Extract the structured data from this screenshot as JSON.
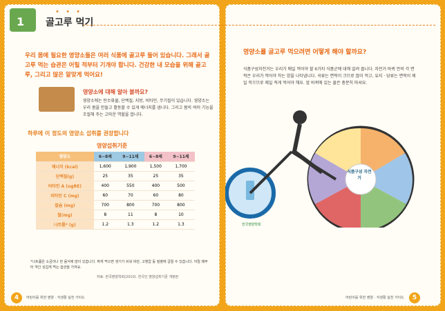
{
  "chapter": {
    "number": "1",
    "title": "골고루 먹기"
  },
  "intro_text": "우리 몸에 필요한 영양소들은 여러 식품에 골고루 들어 있습니다. 그래서 골고루 먹는 습관은 어릴 적부터 기개야 합니다. 건강한 내 모습을 위해 골고루, 그리고 많은 알맞게 먹어요!",
  "nutrient_box": {
    "title": "영양소에 대해 알아 볼까요?",
    "text": "영양소에는 탄수화물, 단백질, 지방, 비타민, 무기질이 있습니다. 영양소는 우리 몸을 만들고 활동할 수 있게 에너지를 냅니다. 그리고 몸의 여러 기능을 조절해 주는 고마운 역할을 합니다."
  },
  "intake_section": {
    "title": "하루에 이 정도의 영양소 섭취를 권장합니다",
    "table_caption": "영양섭취기준",
    "row_header": "영양소",
    "columns": [
      "6~8세",
      "9~11세",
      "6~8세",
      "9~11세"
    ],
    "rows": [
      {
        "name": "에너지 (kcal)",
        "values": [
          "1,600",
          "1,900",
          "1,500",
          "1,700"
        ]
      },
      {
        "name": "단백질(g)",
        "values": [
          "25",
          "35",
          "25",
          "35"
        ]
      },
      {
        "name": "비타민 A (ugRE)",
        "values": [
          "400",
          "550",
          "400",
          "500"
        ]
      },
      {
        "name": "비타민 C (mg)",
        "values": [
          "60",
          "70",
          "60",
          "80"
        ]
      },
      {
        "name": "칼슘 (mg)",
        "values": [
          "700",
          "800",
          "700",
          "800"
        ]
      },
      {
        "name": "철(mg)",
        "values": [
          "8",
          "11",
          "8",
          "10"
        ]
      },
      {
        "name": "나트륨* (g)",
        "values": [
          "1.2",
          "1.3",
          "1.2",
          "1.3"
        ]
      }
    ],
    "footnote": "*나트륨은 소금이나 한 음식에 많이 있습니다. 짜게 먹으면 생기가 쉬워 비만, 고혈압 등 질병에 걸릴 수 있습니다. 어릴 때부터 약간 싱겁게 먹는 습관을 가져요.",
    "source": "자료: 한국영양학회(2010). 한국인 영양섭취기준 개정판"
  },
  "right_page": {
    "title": "영양소를 골고루 먹으려면 어떻게 해야 할까요?",
    "text": "식품구성자전거는 우리가 매일 먹어야 할 6가지 식품군에 대해 알려 줍니다. 자전거 바퀴 안의 각 면적은 우리가 먹어야 하는 양을 나타냅니다. 곡류는 면적이 크므로 많이 먹고, 유지 · 당류는 면적이 제일 작으므로 제일 적게 먹어야 해요. 앞 바퀴에 있는 물은 충분히 마셔요.",
    "wheel_label": "식품구성 자전거",
    "logo": "한국영양학회"
  },
  "footer": {
    "left_page_num": "4",
    "right_page_num": "5",
    "left_text": "어린이를 위한 영양 · 식생활 실천 가이드",
    "right_text": "어린이를 위한 영양 · 식생활 실천 가이드"
  }
}
